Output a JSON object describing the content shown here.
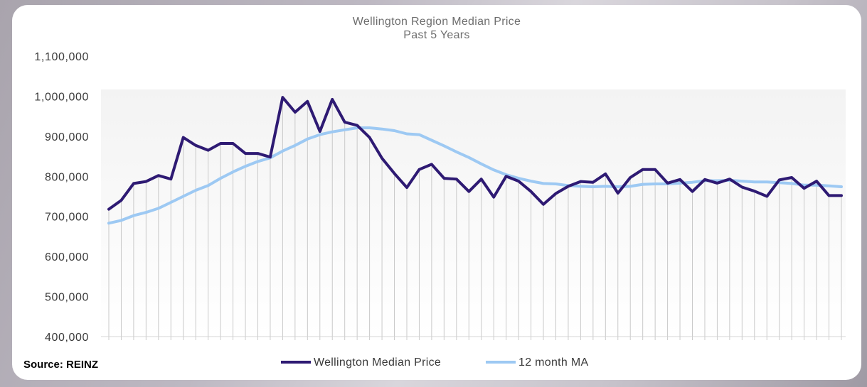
{
  "chart_data": {
    "type": "line",
    "title": "Wellington Region Median Price",
    "subtitle": "Past 5 Years",
    "xlabel": "",
    "ylabel": "",
    "ylim": [
      400000,
      1100000
    ],
    "yticks": [
      "400,000",
      "500,000",
      "600,000",
      "700,000",
      "800,000",
      "900,000",
      "1,000,000",
      "1,100,000"
    ],
    "grid": false,
    "legend_position": "bottom",
    "series": [
      {
        "name": "Wellington Median Price",
        "color": "#2e1a73",
        "values": [
          718000,
          740000,
          782000,
          787000,
          802000,
          793000,
          897000,
          877000,
          865000,
          882000,
          882000,
          857000,
          857000,
          848000,
          997000,
          960000,
          987000,
          912000,
          992000,
          935000,
          927000,
          897000,
          845000,
          807000,
          772000,
          817000,
          830000,
          795000,
          793000,
          762000,
          793000,
          748000,
          800000,
          788000,
          762000,
          730000,
          757000,
          775000,
          787000,
          785000,
          806000,
          758000,
          797000,
          817000,
          817000,
          783000,
          792000,
          762000,
          792000,
          783000,
          793000,
          773000,
          763000,
          750000,
          791000,
          797000,
          770000,
          788000,
          752000,
          752000
        ]
      },
      {
        "name": "12 month MA",
        "color": "#9dc9f3",
        "values": [
          683000,
          690000,
          702000,
          710000,
          720000,
          735000,
          750000,
          765000,
          777000,
          795000,
          811000,
          825000,
          837000,
          846000,
          863000,
          877000,
          893000,
          904000,
          911000,
          916000,
          921000,
          921000,
          918000,
          914000,
          906000,
          904000,
          890000,
          876000,
          861000,
          847000,
          831000,
          816000,
          804000,
          795000,
          788000,
          782000,
          781000,
          777000,
          775000,
          774000,
          775000,
          774000,
          775000,
          780000,
          781000,
          781000,
          783000,
          785000,
          789000,
          789000,
          790000,
          788000,
          786000,
          786000,
          784000,
          782000,
          778000,
          778000,
          776000,
          774000
        ]
      }
    ]
  },
  "source_label": "Source: REINZ"
}
